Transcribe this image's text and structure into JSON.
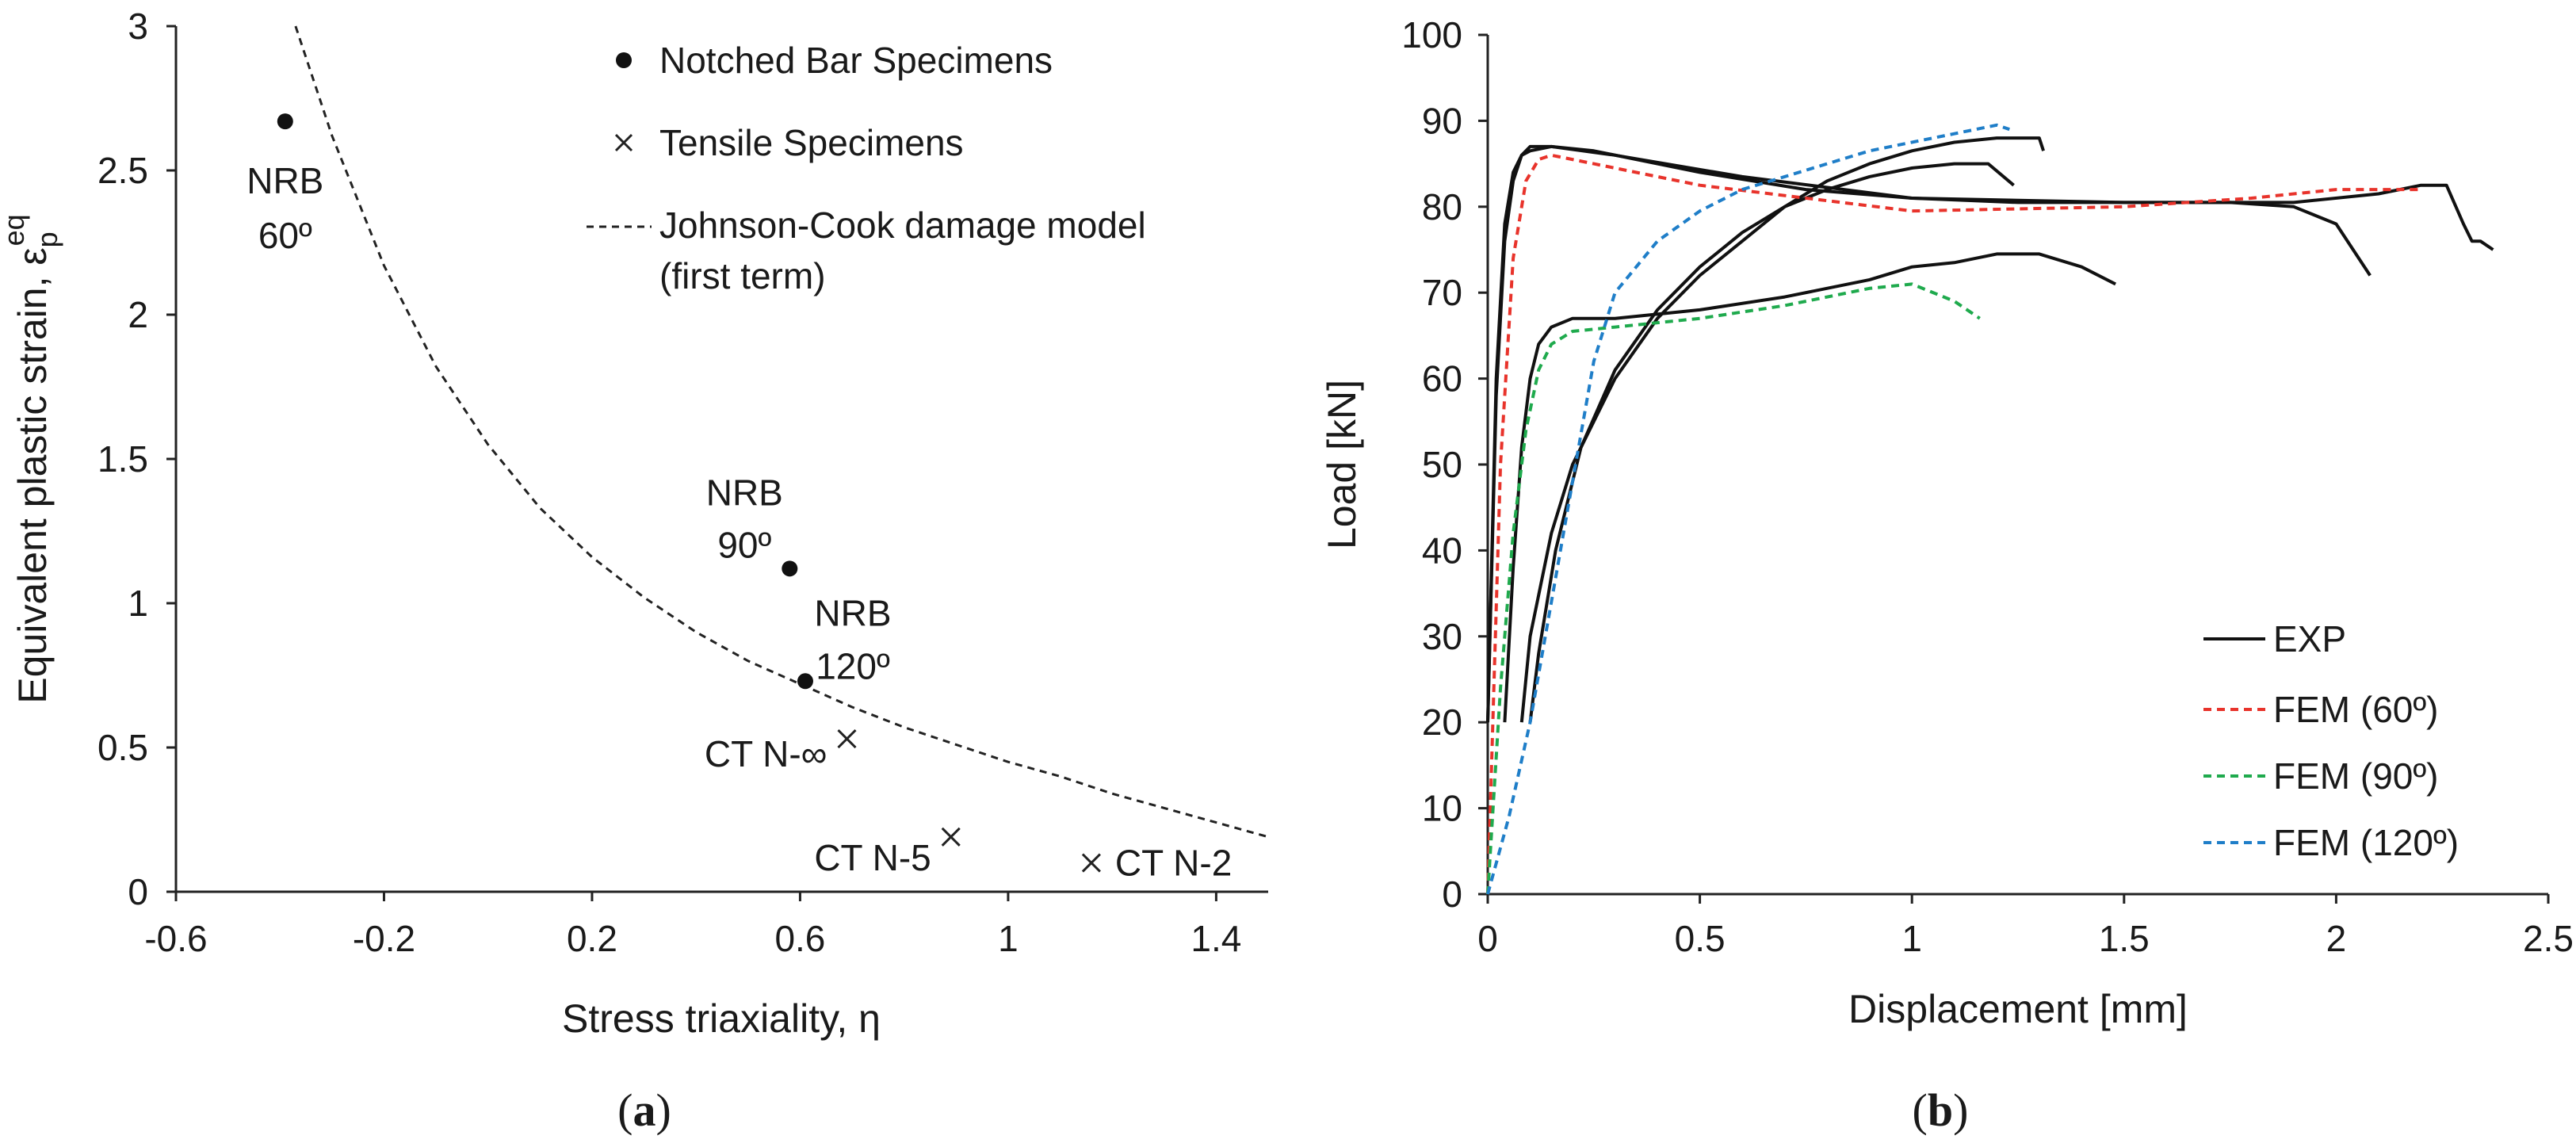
{
  "chart_data": [
    {
      "id": "a",
      "type": "scatter",
      "caption_open": "(",
      "caption_label": "a",
      "caption_close": ")",
      "xlabel": "Stress triaxiality, η",
      "ylabel_main": "Equivalent plastic strain, ε",
      "ylabel_sub": "p",
      "ylabel_sup": "eq",
      "xlim": [
        -0.6,
        1.5
      ],
      "ylim": [
        0,
        3
      ],
      "xticks": [
        {
          "value": -0.6,
          "label": "-0.6"
        },
        {
          "value": -0.2,
          "label": "-0.2"
        },
        {
          "value": 0.2,
          "label": "0.2"
        },
        {
          "value": 0.6,
          "label": "0.6"
        },
        {
          "value": 1.0,
          "label": "1"
        },
        {
          "value": 1.4,
          "label": "1.4"
        }
      ],
      "yticks": [
        {
          "value": 0,
          "label": "0"
        },
        {
          "value": 0.5,
          "label": "0.5"
        },
        {
          "value": 1.0,
          "label": "1"
        },
        {
          "value": 1.5,
          "label": "1.5"
        },
        {
          "value": 2.0,
          "label": "2"
        },
        {
          "value": 2.5,
          "label": "2.5"
        },
        {
          "value": 3.0,
          "label": "3"
        }
      ],
      "legend": [
        {
          "marker": "dot",
          "label": "Notched Bar Specimens"
        },
        {
          "marker": "cross",
          "label": "Tensile Specimens"
        },
        {
          "marker": "dash",
          "label": "Johnson-Cook damage model",
          "label2": "(first term)"
        }
      ],
      "notched_bar": [
        {
          "x": -0.39,
          "y": 2.67,
          "label1": "NRB",
          "label2": "60º"
        },
        {
          "x": 0.58,
          "y": 1.12,
          "label1": "NRB",
          "label2": "90º"
        },
        {
          "x": 0.61,
          "y": 0.73,
          "label1": "NRB",
          "label2": "120º"
        }
      ],
      "tensile": [
        {
          "x": 0.69,
          "y": 0.53,
          "label": "CT N-∞"
        },
        {
          "x": 0.89,
          "y": 0.19,
          "label": "CT N-5"
        },
        {
          "x": 1.16,
          "y": 0.1,
          "label": "CT N-2"
        }
      ],
      "jc_model": {
        "x": [
          -0.37,
          -0.3,
          -0.2,
          -0.1,
          0.0,
          0.1,
          0.2,
          0.3,
          0.4,
          0.5,
          0.6,
          0.7,
          0.8,
          0.9,
          1.0,
          1.1,
          1.2,
          1.3,
          1.4,
          1.5
        ],
        "y": [
          3.0,
          2.62,
          2.17,
          1.82,
          1.55,
          1.33,
          1.16,
          1.02,
          0.9,
          0.8,
          0.72,
          0.64,
          0.57,
          0.51,
          0.45,
          0.4,
          0.34,
          0.29,
          0.24,
          0.19
        ]
      }
    },
    {
      "id": "b",
      "type": "line",
      "caption_open": "(",
      "caption_label": "b",
      "caption_close": ")",
      "xlabel": "Displacement [mm]",
      "ylabel": "Load [kN]",
      "xlim": [
        0,
        2.5
      ],
      "ylim": [
        0,
        100
      ],
      "xticks": [
        {
          "value": 0,
          "label": "0"
        },
        {
          "value": 0.5,
          "label": "0.5"
        },
        {
          "value": 1.0,
          "label": "1"
        },
        {
          "value": 1.5,
          "label": "1.5"
        },
        {
          "value": 2.0,
          "label": "2"
        },
        {
          "value": 2.5,
          "label": "2.5"
        }
      ],
      "yticks": [
        {
          "value": 0,
          "label": "0"
        },
        {
          "value": 10,
          "label": "10"
        },
        {
          "value": 20,
          "label": "20"
        },
        {
          "value": 30,
          "label": "30"
        },
        {
          "value": 40,
          "label": "40"
        },
        {
          "value": 50,
          "label": "50"
        },
        {
          "value": 60,
          "label": "60"
        },
        {
          "value": 70,
          "label": "70"
        },
        {
          "value": 80,
          "label": "80"
        },
        {
          "value": 90,
          "label": "90"
        },
        {
          "value": 100,
          "label": "100"
        }
      ],
      "legend": [
        {
          "name": "EXP",
          "label": "EXP"
        },
        {
          "name": "FEM (60º)",
          "label": "FEM (60º)"
        },
        {
          "name": "FEM (90º)",
          "label": "FEM (90º)"
        },
        {
          "name": "FEM (120º)",
          "label": "FEM (120º)"
        }
      ],
      "series": [
        {
          "name": "EXP",
          "color": "#111111",
          "dashed": false,
          "x": [
            0.0,
            0.02,
            0.04,
            0.06,
            0.08,
            0.1,
            0.15,
            0.25,
            0.5,
            0.75,
            1.0,
            1.25,
            1.5,
            1.75,
            1.9,
            2.0,
            2.08
          ],
          "y": [
            20,
            60,
            78,
            84,
            86,
            87,
            87,
            86.5,
            84,
            82,
            81,
            80.5,
            80.5,
            80.5,
            80,
            78,
            72
          ]
        },
        {
          "name": "EXP",
          "color": "#111111",
          "dashed": false,
          "x": [
            0.0,
            0.02,
            0.04,
            0.06,
            0.08,
            0.1,
            0.15,
            0.3,
            0.6,
            1.0,
            1.5,
            1.9,
            2.1,
            2.2,
            2.26,
            2.3,
            2.32,
            2.34,
            2.37
          ],
          "y": [
            20,
            58,
            76,
            83,
            86,
            86.5,
            87,
            86,
            83.5,
            81,
            80.5,
            80.5,
            81.5,
            82.5,
            82.5,
            78,
            76,
            76,
            75
          ]
        },
        {
          "name": "EXP",
          "color": "#111111",
          "dashed": false,
          "x": [
            0.08,
            0.1,
            0.15,
            0.2,
            0.3,
            0.4,
            0.5,
            0.6,
            0.7,
            0.8,
            0.9,
            1.0,
            1.1,
            1.2,
            1.3,
            1.31
          ],
          "y": [
            20,
            30,
            42,
            50,
            60,
            67,
            72,
            76,
            80,
            83,
            85,
            86.5,
            87.5,
            88,
            88,
            86.5
          ]
        },
        {
          "name": "EXP",
          "color": "#111111",
          "dashed": false,
          "x": [
            0.1,
            0.12,
            0.16,
            0.22,
            0.3,
            0.4,
            0.5,
            0.6,
            0.7,
            0.8,
            0.9,
            1.0,
            1.1,
            1.18,
            1.24
          ],
          "y": [
            20,
            28,
            40,
            52,
            61,
            68,
            73,
            77,
            80,
            82,
            83.5,
            84.5,
            85,
            85,
            82.5
          ]
        },
        {
          "name": "EXP",
          "color": "#111111",
          "dashed": false,
          "x": [
            0.04,
            0.06,
            0.08,
            0.1,
            0.12,
            0.15,
            0.2,
            0.3,
            0.5,
            0.7,
            0.9,
            1.0,
            1.1,
            1.2,
            1.3,
            1.4,
            1.48
          ],
          "y": [
            20,
            38,
            52,
            60,
            64,
            66,
            67,
            67,
            68,
            69.5,
            71.5,
            73,
            73.5,
            74.5,
            74.5,
            73,
            71
          ]
        },
        {
          "name": "FEM (60º)",
          "color": "#e8332b",
          "dashed": true,
          "x": [
            0.0,
            0.03,
            0.06,
            0.09,
            0.12,
            0.15,
            0.25,
            0.5,
            1.0,
            1.5,
            1.8,
            2.0,
            2.2
          ],
          "y": [
            0,
            50,
            74,
            83,
            85.5,
            86,
            85,
            82.5,
            79.5,
            80,
            81,
            82,
            82
          ]
        },
        {
          "name": "FEM (90º)",
          "color": "#1faa4d",
          "dashed": true,
          "x": [
            0.0,
            0.03,
            0.06,
            0.09,
            0.12,
            0.15,
            0.2,
            0.3,
            0.5,
            0.7,
            0.9,
            1.0,
            1.1,
            1.16
          ],
          "y": [
            0,
            24,
            42,
            54,
            61,
            64,
            65.5,
            66,
            67,
            68.5,
            70.5,
            71,
            69,
            67
          ]
        },
        {
          "name": "FEM (120º)",
          "color": "#1f7ec8",
          "dashed": true,
          "x": [
            0.0,
            0.05,
            0.1,
            0.15,
            0.2,
            0.25,
            0.3,
            0.4,
            0.5,
            0.6,
            0.7,
            0.8,
            0.9,
            1.0,
            1.1,
            1.2,
            1.23
          ],
          "y": [
            0,
            9,
            20,
            34,
            48,
            62,
            70,
            76,
            79.5,
            82,
            83.5,
            85,
            86.5,
            87.5,
            88.5,
            89.5,
            89
          ]
        }
      ]
    }
  ]
}
